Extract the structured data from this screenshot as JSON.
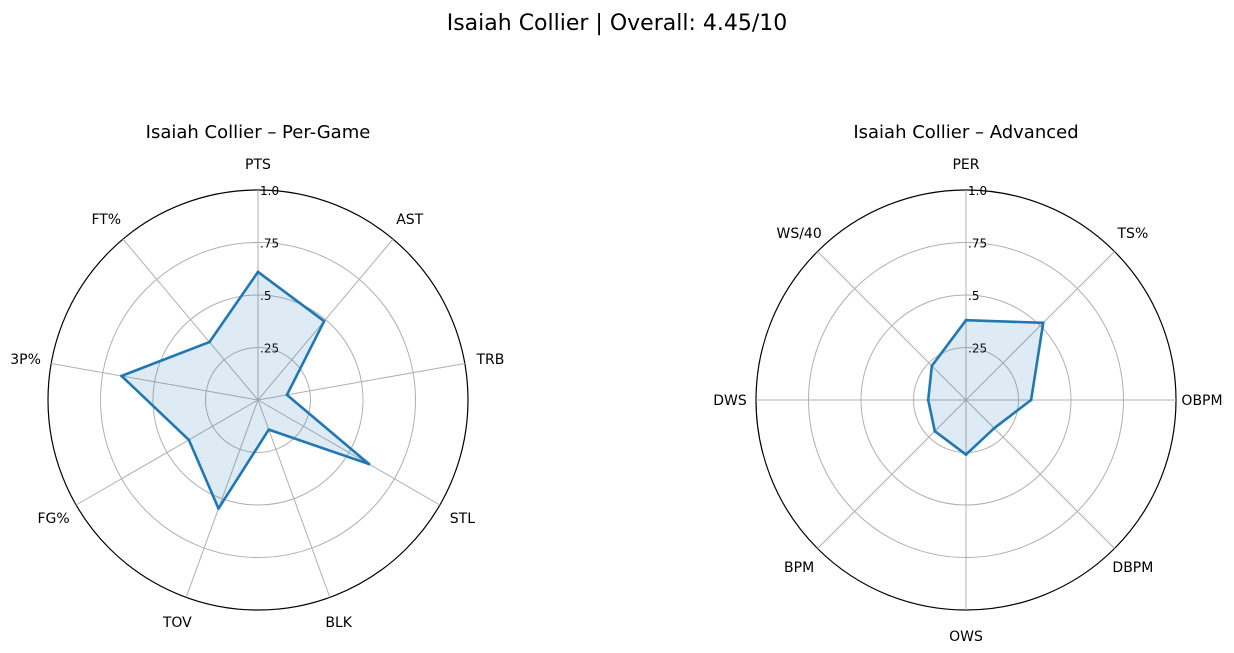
{
  "figure": {
    "title": "Isaiah Collier | Overall: 4.45/10"
  },
  "colors": {
    "series_line": "#1f77b4",
    "series_fill": "#1f77b4",
    "grid": "#b0b0b0",
    "outer_ring": "#000000"
  },
  "chart_data": [
    {
      "type": "radar",
      "title": "Isaiah Collier – Per-Game",
      "categories": [
        "PTS",
        "AST",
        "TRB",
        "STL",
        "BLK",
        "TOV",
        "FG%",
        "3P%",
        "FT%"
      ],
      "r_ticks": [
        0.25,
        0.5,
        0.75,
        1.0
      ],
      "r_tick_labels": [
        ".25",
        ".5",
        ".75",
        "1.0"
      ],
      "rlim": [
        0,
        1
      ],
      "grid": true,
      "series": [
        {
          "values": [
            0.61,
            0.49,
            0.14,
            0.61,
            0.15,
            0.55,
            0.38,
            0.66,
            0.36
          ]
        }
      ]
    },
    {
      "type": "radar",
      "title": "Isaiah Collier – Advanced",
      "categories": [
        "PER",
        "TS%",
        "OBPM",
        "DBPM",
        "OWS",
        "BPM",
        "DWS",
        "WS/40"
      ],
      "r_ticks": [
        0.25,
        0.5,
        0.75,
        1.0
      ],
      "r_tick_labels": [
        ".25",
        ".5",
        ".75",
        "1.0"
      ],
      "rlim": [
        0,
        1
      ],
      "grid": true,
      "series": [
        {
          "values": [
            0.38,
            0.52,
            0.31,
            0.19,
            0.26,
            0.21,
            0.18,
            0.23
          ]
        }
      ]
    }
  ]
}
